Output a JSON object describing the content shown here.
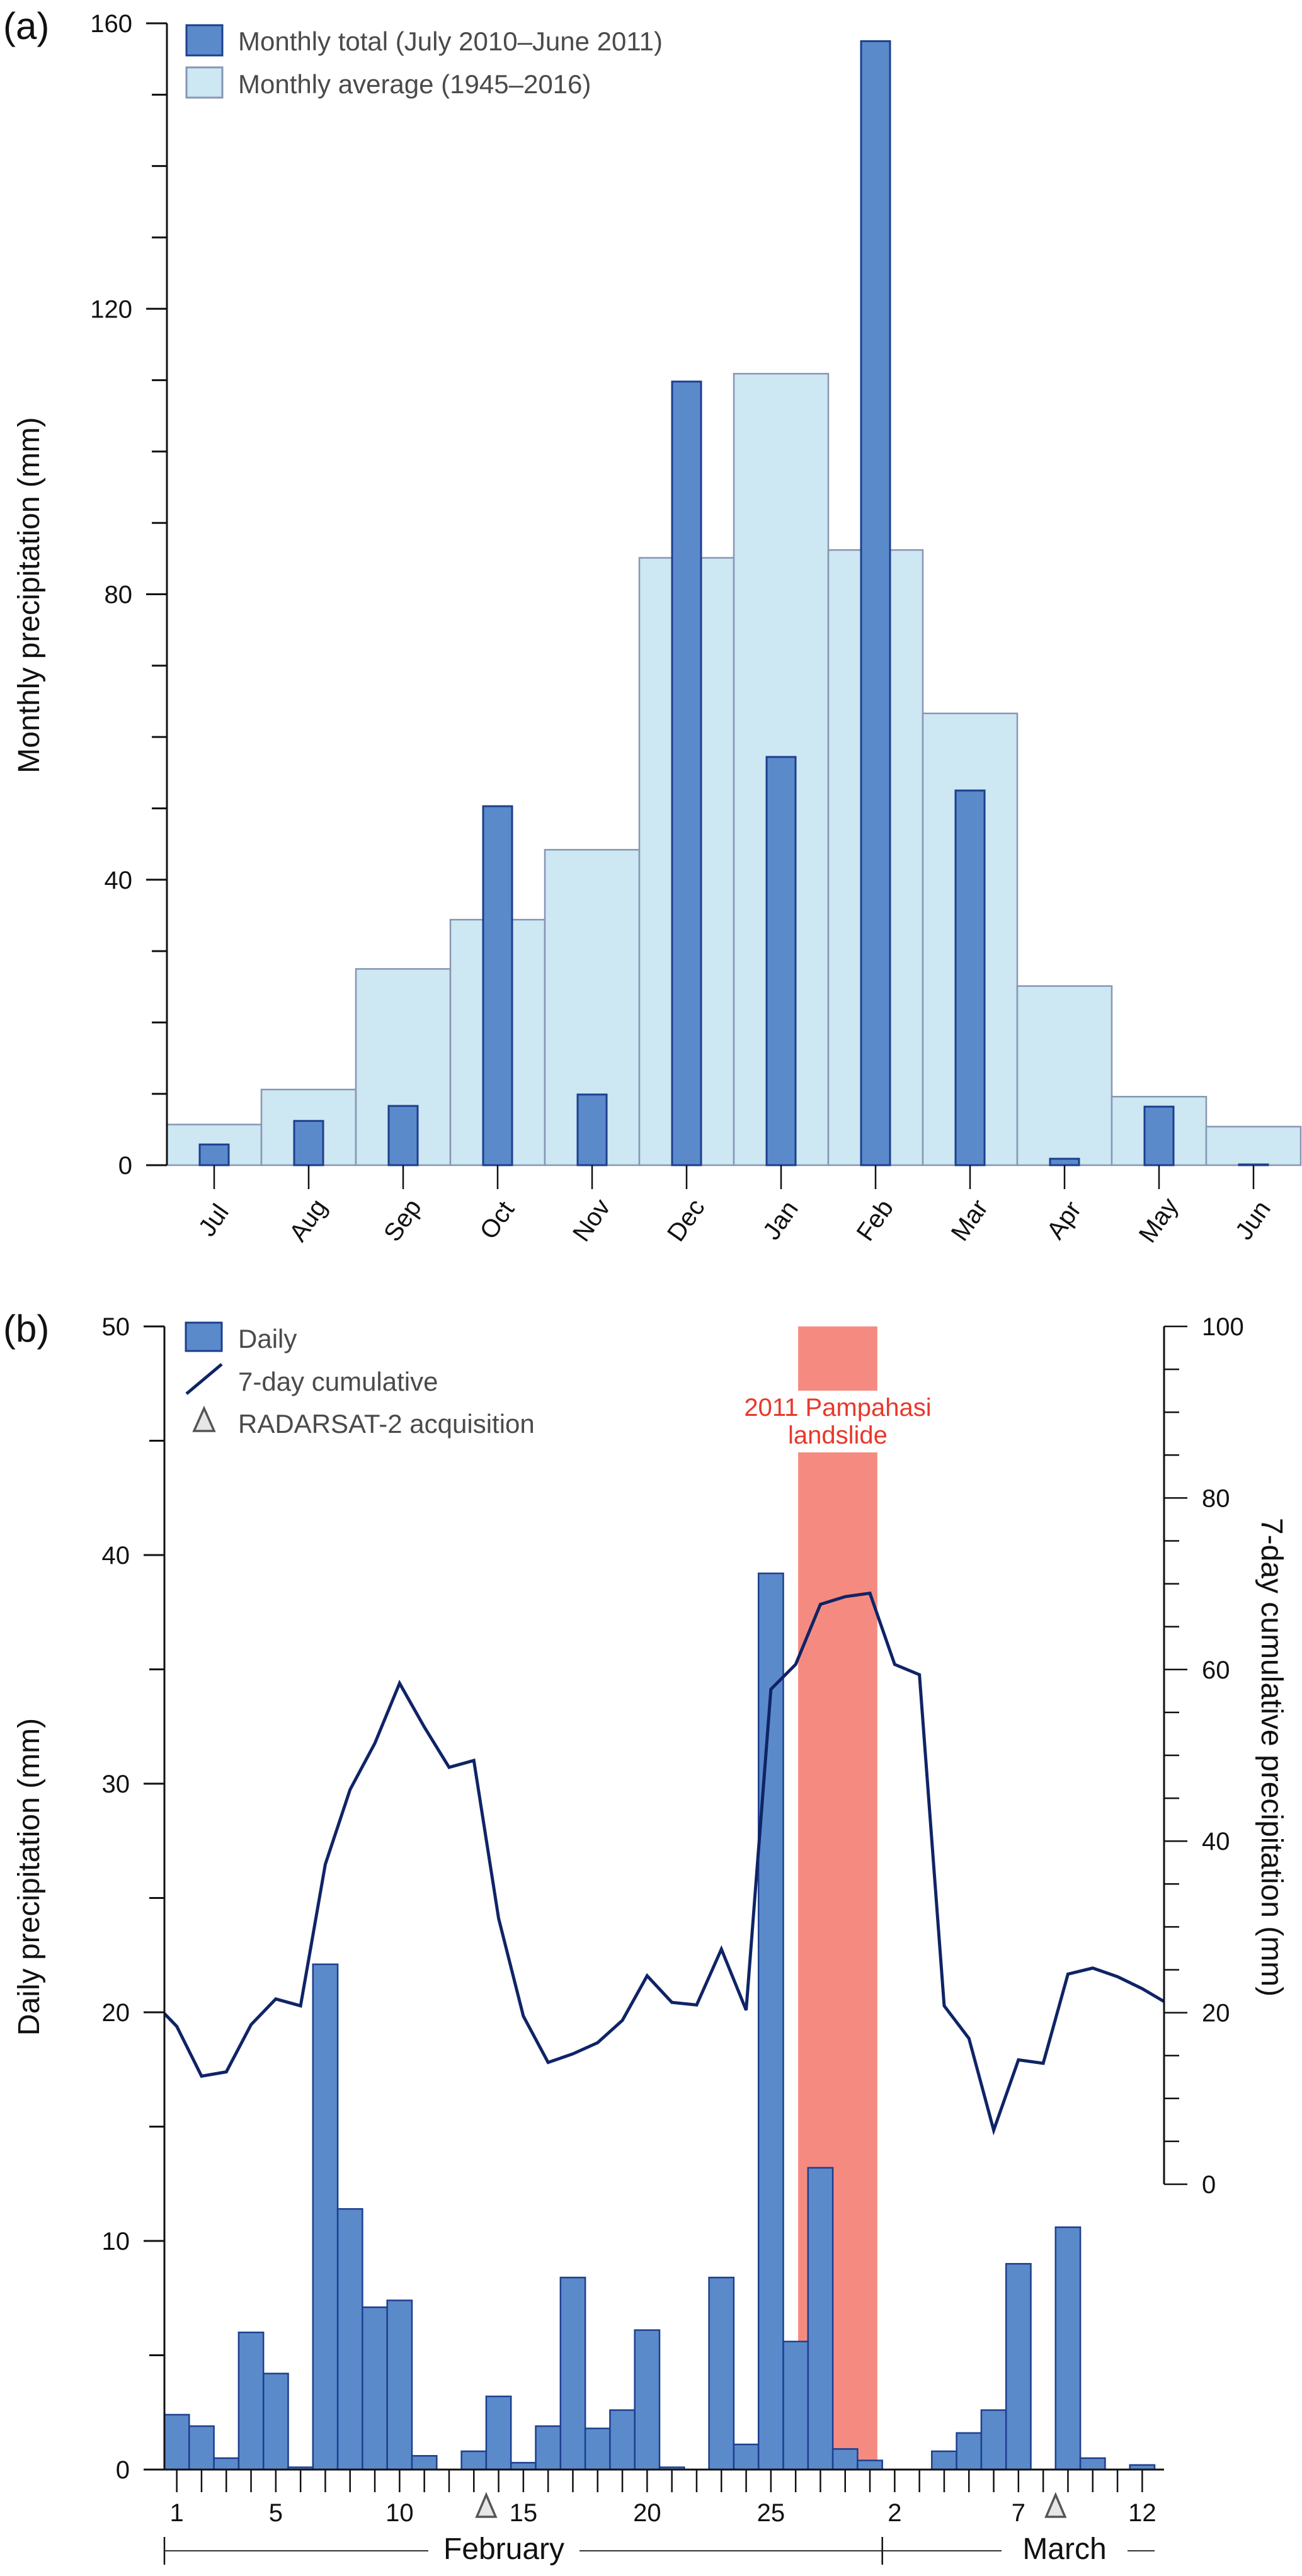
{
  "chart_data": [
    {
      "panel": "(a)",
      "type": "bar",
      "title": "",
      "xlabel": "",
      "ylabel": "Monthly precipitation (mm)",
      "ylim": [
        0,
        160
      ],
      "yticks_labeled": [
        0,
        40,
        80,
        120,
        160
      ],
      "yticks_minor_step": 10,
      "categories": [
        "Jul",
        "Aug",
        "Sep",
        "Oct",
        "Nov",
        "Dec",
        "Jan",
        "Feb",
        "Mar",
        "Apr",
        "May",
        "Jun"
      ],
      "series": [
        {
          "name": "Monthly average (1945–2016)",
          "style": "wide",
          "color": "#cde7f3",
          "edge": "#8796b3",
          "values": [
            5.7,
            10.6,
            27.5,
            34.4,
            44.2,
            85.1,
            110.9,
            86.2,
            63.3,
            25.1,
            9.6,
            5.4
          ]
        },
        {
          "name": "Monthly total (July 2010–June 2011)",
          "style": "narrow",
          "color": "#5b8acb",
          "edge": "#1d3f8e",
          "values": [
            2.9,
            6.2,
            8.3,
            50.3,
            9.9,
            109.8,
            57.2,
            157.5,
            52.5,
            0.9,
            8.2,
            0.1
          ]
        }
      ],
      "legend": {
        "placement": "top-left",
        "entries": [
          "Monthly total (July 2010–June 2011)",
          "Monthly average (1945–2016)"
        ]
      },
      "grid": false
    },
    {
      "panel": "(b)",
      "type": "bar",
      "title": "",
      "xlabel": "",
      "ylabel": "Daily precipitation (mm)",
      "ylabel_right": "7-day cumulative precipitation (mm)",
      "ylim": [
        0,
        50
      ],
      "ylim_right": [
        0,
        100
      ],
      "yticks_labeled": [
        0,
        10,
        20,
        30,
        40,
        50
      ],
      "yticks_minor_step": 5,
      "yticks_right_labeled": [
        0,
        20,
        40,
        60,
        80,
        100
      ],
      "yticks_right_minor_step": 5,
      "x": [
        "Feb 1",
        "Feb 2",
        "Feb 3",
        "Feb 4",
        "Feb 5",
        "Feb 6",
        "Feb 7",
        "Feb 8",
        "Feb 9",
        "Feb 10",
        "Feb 11",
        "Feb 12",
        "Feb 13",
        "Feb 14",
        "Feb 15",
        "Feb 16",
        "Feb 17",
        "Feb 18",
        "Feb 19",
        "Feb 20",
        "Feb 21",
        "Feb 22",
        "Feb 23",
        "Feb 24",
        "Feb 25",
        "Feb 26",
        "Feb 27",
        "Feb 28",
        "Mar 1",
        "Mar 2",
        "Mar 3",
        "Mar 4",
        "Mar 5",
        "Mar 6",
        "Mar 7",
        "Mar 8",
        "Mar 9",
        "Mar 10",
        "Mar 11",
        "Mar 12"
      ],
      "xtick_labels": [
        {
          "index": 0,
          "label": "1"
        },
        {
          "index": 4,
          "label": "5"
        },
        {
          "index": 9,
          "label": "10"
        },
        {
          "index": 14,
          "label": "15"
        },
        {
          "index": 19,
          "label": "20"
        },
        {
          "index": 24,
          "label": "25"
        },
        {
          "index": 29,
          "label": "2"
        },
        {
          "index": 34,
          "label": "7"
        },
        {
          "index": 39,
          "label": "12"
        }
      ],
      "periods": [
        {
          "label": "February",
          "start_index": 0,
          "end_index": 28
        },
        {
          "label": "March",
          "start_index": 29,
          "end_index": 40
        }
      ],
      "series": [
        {
          "name": "Daily",
          "type": "bar",
          "axis": "left",
          "color": "#5b8acb",
          "edge": "#1d3f8e",
          "values": [
            2.4,
            1.9,
            0.5,
            6.0,
            4.2,
            0.1,
            22.1,
            11.4,
            7.1,
            7.4,
            0.6,
            0.0,
            0.8,
            3.2,
            0.3,
            1.9,
            8.4,
            1.8,
            2.6,
            6.1,
            0.1,
            0.0,
            8.4,
            1.1,
            39.2,
            5.6,
            13.2,
            0.9,
            0.4,
            0.0,
            0.0,
            0.8,
            1.6,
            2.6,
            9.0,
            0.0,
            10.6,
            0.5,
            0.0,
            0.2
          ]
        },
        {
          "name": "7-day cumulative",
          "type": "line",
          "axis": "right",
          "color": "#0f2466",
          "start_value": 19.9,
          "end_value": 21.3,
          "values": [
            18.4,
            12.6,
            13.1,
            18.6,
            21.6,
            20.8,
            37.3,
            46.0,
            51.4,
            58.4,
            53.3,
            48.6,
            49.4,
            31.0,
            19.6,
            14.2,
            15.2,
            16.5,
            19.1,
            24.3,
            21.2,
            20.9,
            27.4,
            20.3,
            57.7,
            60.6,
            67.6,
            68.5,
            68.9,
            60.6,
            59.4,
            20.8,
            17.0,
            6.3,
            14.5,
            14.1,
            24.5,
            25.2,
            24.2,
            22.8
          ]
        },
        {
          "name": "RADARSAT-2 acquisition",
          "type": "marker",
          "marker": "triangle",
          "color": "#e6e6e6",
          "edge": "#555555",
          "positions": [
            12.5,
            35.5
          ]
        }
      ],
      "annotations": [
        {
          "text_lines": [
            "2011 Pampahasi",
            "landslide"
          ],
          "type": "shaded-span",
          "color": "#f58b80",
          "text_color": "#e8382a",
          "start_index": 25.6,
          "end_index": 28.8
        }
      ],
      "legend": {
        "placement": "top-left",
        "entries": [
          "Daily",
          "7-day cumulative",
          "RADARSAT-2 acquisition"
        ]
      },
      "grid": false
    }
  ],
  "labels": {
    "panel_a": "(a)",
    "panel_b": "(b)",
    "a_ylabel": "Monthly precipitation (mm)",
    "a_legend_total": "Monthly total (July 2010–June 2011)",
    "a_legend_avg": "Monthly average (1945–2016)",
    "b_ylabel": "Daily precipitation (mm)",
    "b_ylabel_right": "7-day cumulative precipitation (mm)",
    "b_legend_daily": "Daily",
    "b_legend_cum": "7-day cumulative",
    "b_legend_radar": "RADARSAT-2 acquisition",
    "annot_line1": "2011 Pampahasi",
    "annot_line2": "landslide",
    "month_feb": "February",
    "month_mar": "March"
  }
}
